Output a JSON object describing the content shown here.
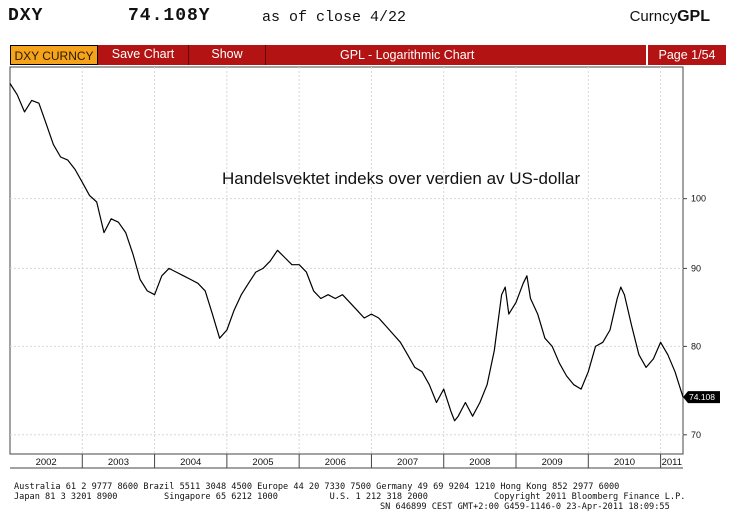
{
  "header": {
    "ticker": "DXY",
    "value": "74.108Y",
    "as_of": "as of close  4/22",
    "source_prefix": "Curncy",
    "source_code": "GPL"
  },
  "toolbar": {
    "ticker_label": "DXY CURNCY",
    "save_chart": "Save Chart",
    "show": "Show",
    "title": "GPL - Logarithmic Chart",
    "page": "Page 1/54"
  },
  "chart_data": {
    "type": "line",
    "title": "Handelsvektet indeks over verdien av US-dollar",
    "scale": "log",
    "ylim": [
      68,
      122
    ],
    "yticks": [
      70,
      80,
      90,
      100
    ],
    "xlim": [
      2002.0,
      2011.31
    ],
    "x_tick_labels": [
      "2002",
      "2003",
      "2004",
      "2005",
      "2006",
      "2007",
      "2008",
      "2009",
      "2010",
      "2011"
    ],
    "last_value_label": "74.108",
    "grid": true,
    "series": [
      {
        "name": "",
        "x": [
          2002.0,
          2002.1,
          2002.2,
          2002.3,
          2002.4,
          2002.5,
          2002.6,
          2002.7,
          2002.8,
          2002.9,
          2003.0,
          2003.1,
          2003.2,
          2003.3,
          2003.4,
          2003.5,
          2003.6,
          2003.7,
          2003.8,
          2003.9,
          2004.0,
          2004.1,
          2004.2,
          2004.3,
          2004.4,
          2004.5,
          2004.6,
          2004.7,
          2004.8,
          2004.9,
          2005.0,
          2005.1,
          2005.2,
          2005.3,
          2005.4,
          2005.5,
          2005.6,
          2005.7,
          2005.8,
          2005.9,
          2006.0,
          2006.1,
          2006.2,
          2006.3,
          2006.4,
          2006.5,
          2006.6,
          2006.7,
          2006.8,
          2006.9,
          2007.0,
          2007.1,
          2007.2,
          2007.3,
          2007.4,
          2007.5,
          2007.6,
          2007.7,
          2007.8,
          2007.9,
          2008.0,
          2008.1,
          2008.15,
          2008.2,
          2008.3,
          2008.4,
          2008.5,
          2008.6,
          2008.7,
          2008.8,
          2008.85,
          2008.9,
          2009.0,
          2009.1,
          2009.15,
          2009.2,
          2009.3,
          2009.4,
          2009.5,
          2009.6,
          2009.7,
          2009.8,
          2009.9,
          2010.0,
          2010.1,
          2010.2,
          2010.3,
          2010.4,
          2010.45,
          2010.5,
          2010.6,
          2010.7,
          2010.8,
          2010.9,
          2011.0,
          2011.1,
          2011.2,
          2011.31
        ],
        "values": [
          119.0,
          117.0,
          114.0,
          116.0,
          115.5,
          112.0,
          108.5,
          106.5,
          106.0,
          104.5,
          102.5,
          100.5,
          99.5,
          95.0,
          97.0,
          96.5,
          95.0,
          92.0,
          88.5,
          87.0,
          86.5,
          89.0,
          90.0,
          89.5,
          89.0,
          88.5,
          88.0,
          87.0,
          84.0,
          81.0,
          82.0,
          84.5,
          86.5,
          88.0,
          89.5,
          90.0,
          91.0,
          92.5,
          91.5,
          90.5,
          90.5,
          89.5,
          87.0,
          86.0,
          86.5,
          86.0,
          86.5,
          85.5,
          84.5,
          83.5,
          84.0,
          83.5,
          82.5,
          81.5,
          80.5,
          79.0,
          77.5,
          77.0,
          75.5,
          73.5,
          75.0,
          72.5,
          71.5,
          72.0,
          73.5,
          72.0,
          73.5,
          75.5,
          79.5,
          86.5,
          87.5,
          84.0,
          85.5,
          88.0,
          89.0,
          86.0,
          84.0,
          81.0,
          80.0,
          78.0,
          76.5,
          75.5,
          75.0,
          77.0,
          80.0,
          80.5,
          82.0,
          86.0,
          87.5,
          86.5,
          82.5,
          79.0,
          77.5,
          78.5,
          80.5,
          79.0,
          77.0,
          74.1
        ]
      }
    ]
  },
  "footer": {
    "line1": "Australia 61 2 9777 8600 Brazil 5511 3048 4500 Europe 44 20 7330 7500 Germany 49 69 9204 1210 Hong Kong 852 2977 6000",
    "line2a": "Japan 81 3 3201 8900         Singapore 65 6212 1000          U.S. 1 212 318 2000",
    "line2b": "Copyright 2011 Bloomberg Finance L.P.",
    "line3": "SN 646899 CEST GMT+2:00 G459-1146-0 23-Apr-2011 18:09:55"
  },
  "colors": {
    "toolbar_bg": "#b31313",
    "ticker_bg": "#f5a31a",
    "line": "#000000"
  }
}
